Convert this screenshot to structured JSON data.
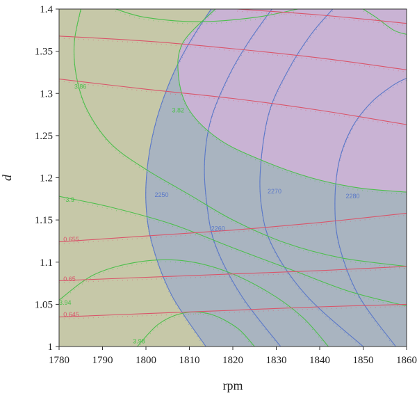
{
  "chart_data": {
    "type": "contour overlay",
    "xlabel": "rpm",
    "ylabel": "d",
    "xlim": [
      1780,
      1860
    ],
    "ylim": [
      1.0,
      1.4
    ],
    "x_ticks": [
      "1780",
      "1790",
      "1800",
      "1810",
      "1820",
      "1830",
      "1840",
      "1850",
      "1860"
    ],
    "y_ticks": [
      "1",
      "1.05",
      "1.1",
      "1.15",
      "1.2",
      "1.25",
      "1.3",
      "1.35",
      "1.4"
    ],
    "colors": {
      "background_region": "#c6c8a8",
      "blue_region": "#a9b4c0",
      "feasible_region": "#c9b3d4",
      "blue_contours": "#5a78c8",
      "green_contours": "#4cbf4c",
      "red_contours": "#d9556a"
    },
    "contour_sets": [
      {
        "color_key": "blue_contours",
        "levels": [
          {
            "label": "2250",
            "label_at": [
              1802,
              1.18
            ],
            "points": [
              [
                1813.8,
                1.0
              ],
              [
                1806,
                1.06
              ],
              [
                1801.5,
                1.12
              ],
              [
                1800,
                1.17
              ],
              [
                1800.5,
                1.22
              ],
              [
                1802.5,
                1.27
              ],
              [
                1806,
                1.32
              ],
              [
                1810,
                1.36
              ],
              [
                1815,
                1.4
              ]
            ]
          },
          {
            "label": "2260",
            "label_at": [
              1815,
              1.14
            ],
            "points": [
              [
                1831,
                1.0
              ],
              [
                1822,
                1.06
              ],
              [
                1816,
                1.12
              ],
              [
                1814,
                1.17
              ],
              [
                1813.5,
                1.22
              ],
              [
                1815,
                1.27
              ],
              [
                1819,
                1.32
              ],
              [
                1823.5,
                1.36
              ],
              [
                1829,
                1.4
              ]
            ]
          },
          {
            "label": "2270",
            "label_at": [
              1828,
              1.184
            ],
            "points": [
              [
                1850,
                1.0
              ],
              [
                1837,
                1.06
              ],
              [
                1829,
                1.12
              ],
              [
                1826.5,
                1.17
              ],
              [
                1826.5,
                1.22
              ],
              [
                1828.5,
                1.28
              ],
              [
                1833,
                1.33
              ],
              [
                1838,
                1.37
              ],
              [
                1843,
                1.4
              ]
            ]
          },
          {
            "label": "2280",
            "label_at": [
              1846,
              1.178
            ],
            "points": [
              [
                1857.5,
                1.0
              ],
              [
                1849,
                1.06
              ],
              [
                1844.5,
                1.12
              ],
              [
                1843.5,
                1.17
              ],
              [
                1844.5,
                1.22
              ],
              [
                1847.5,
                1.26
              ],
              [
                1852,
                1.29
              ],
              [
                1857,
                1.31
              ],
              [
                1860,
                1.318
              ]
            ]
          }
        ]
      },
      {
        "color_key": "green_contours",
        "levels": [
          {
            "label": "3.86",
            "label_at": [
              1783.5,
              1.308
            ],
            "points": [
              [
                1785,
                1.4
              ],
              [
                1783.5,
                1.36
              ],
              [
                1784,
                1.32
              ],
              [
                1786.5,
                1.28
              ],
              [
                1792,
                1.24
              ],
              [
                1800,
                1.21
              ],
              [
                1810,
                1.18
              ],
              [
                1820,
                1.15
              ],
              [
                1832,
                1.123
              ],
              [
                1845,
                1.105
              ],
              [
                1860,
                1.095
              ]
            ]
          },
          {
            "label": "3.82",
            "label_at": [
              1806,
              1.28
            ],
            "points": [
              [
                1816,
                1.4
              ],
              [
                1808.5,
                1.36
              ],
              [
                1807.5,
                1.32
              ],
              [
                1810,
                1.28
              ],
              [
                1817,
                1.245
              ],
              [
                1827,
                1.22
              ],
              [
                1838,
                1.2
              ],
              [
                1849,
                1.188
              ],
              [
                1860,
                1.183
              ]
            ]
          },
          {
            "label": "3.9",
            "label_at": [
              1781.5,
              1.174
            ],
            "points": [
              [
                1780,
                1.178
              ],
              [
                1792,
                1.165
              ],
              [
                1806,
                1.145
              ],
              [
                1820,
                1.117
              ],
              [
                1834,
                1.09
              ],
              [
                1847,
                1.065
              ],
              [
                1860,
                1.048
              ]
            ]
          },
          {
            "label": "3.94",
            "label_at": [
              1780,
              1.052
            ],
            "points": [
              [
                1780,
                1.055
              ],
              [
                1788,
                1.085
              ],
              [
                1798,
                1.1
              ],
              [
                1808,
                1.102
              ],
              [
                1818,
                1.09
              ],
              [
                1828,
                1.065
              ],
              [
                1836,
                1.035
              ],
              [
                1842,
                1.0
              ]
            ]
          },
          {
            "label": "3.98",
            "label_at": [
              1797,
              1.006
            ],
            "points": [
              [
                1798,
                1.0
              ],
              [
                1803,
                1.027
              ],
              [
                1809,
                1.04
              ],
              [
                1815,
                1.038
              ],
              [
                1821,
                1.022
              ],
              [
                1825,
                1.0
              ]
            ]
          },
          {
            "label": "",
            "label_at": null,
            "points": [
              [
                1793,
                1.4
              ],
              [
                1800,
                1.39
              ],
              [
                1812,
                1.385
              ],
              [
                1825,
                1.39
              ],
              [
                1835,
                1.4
              ]
            ]
          },
          {
            "label": "",
            "label_at": null,
            "points": [
              [
                1850,
                1.4
              ],
              [
                1853,
                1.39
              ],
              [
                1857,
                1.375
              ],
              [
                1860,
                1.37
              ]
            ]
          }
        ]
      },
      {
        "color_key": "red_contours",
        "levels": [
          {
            "label": "0.645",
            "label_at": [
              1781,
              1.038
            ],
            "points": [
              [
                1780,
                1.035
              ],
              [
                1800,
                1.039
              ],
              [
                1820,
                1.043
              ],
              [
                1840,
                1.047
              ],
              [
                1860,
                1.05
              ]
            ]
          },
          {
            "label": "0.65",
            "label_at": [
              1781,
              1.08
            ],
            "points": [
              [
                1780,
                1.078
              ],
              [
                1800,
                1.082
              ],
              [
                1820,
                1.086
              ],
              [
                1840,
                1.09
              ],
              [
                1860,
                1.095
              ]
            ]
          },
          {
            "label": "0.655",
            "label_at": [
              1781,
              1.127
            ],
            "points": [
              [
                1780,
                1.124
              ],
              [
                1800,
                1.131
              ],
              [
                1820,
                1.138
              ],
              [
                1840,
                1.147
              ],
              [
                1860,
                1.158
              ]
            ]
          },
          {
            "label": "",
            "label_at": null,
            "points": [
              [
                1780,
                1.317
              ],
              [
                1800,
                1.305
              ],
              [
                1820,
                1.294
              ],
              [
                1840,
                1.28
              ],
              [
                1860,
                1.263
              ]
            ]
          },
          {
            "label": "",
            "label_at": null,
            "points": [
              [
                1780,
                1.368
              ],
              [
                1800,
                1.362
              ],
              [
                1820,
                1.353
              ],
              [
                1840,
                1.342
              ],
              [
                1860,
                1.328
              ]
            ]
          },
          {
            "label": "",
            "label_at": null,
            "points": [
              [
                1821,
                1.4
              ],
              [
                1840,
                1.393
              ],
              [
                1860,
                1.383
              ]
            ]
          }
        ]
      }
    ],
    "regions": [
      {
        "color_key": "blue_region",
        "boundary_level": "2250",
        "side": "right"
      },
      {
        "color_key": "feasible_region",
        "description_level": "3.82",
        "side": "inside"
      }
    ]
  }
}
